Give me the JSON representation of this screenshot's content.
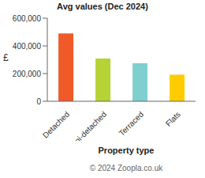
{
  "chart_data": {
    "type": "bar",
    "title": "Avg values (Dec 2024)",
    "subtitle": "© 2024 Zoopla.co.uk",
    "x_label": "Property type",
    "y_label": "£",
    "categories": [
      "Detached",
      "Semi-detached",
      "Terraced",
      "Flats"
    ],
    "values": [
      490000,
      308000,
      275000,
      192000
    ],
    "colors": [
      "#f05a28",
      "#b5d334",
      "#7fcfcf",
      "#ffcc00"
    ],
    "ylim": [
      0,
      600000
    ],
    "yticks": [
      0,
      {
        "value": 200000,
        "label": "200,000"
      },
      {
        "value": 400000,
        "label": "400,000"
      },
      {
        "value": 600000,
        "label": "600,000"
      }
    ],
    "grid": false
  }
}
